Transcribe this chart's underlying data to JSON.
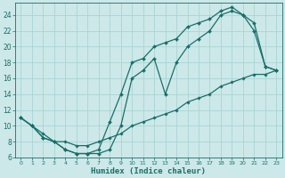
{
  "xlabel": "Humidex (Indice chaleur)",
  "bg_color": "#cce8e8",
  "line_color": "#1a6e6a",
  "grid_color": "#aad4d4",
  "xlim": [
    -0.5,
    23.5
  ],
  "ylim": [
    6,
    25.5
  ],
  "xticks": [
    0,
    1,
    2,
    3,
    4,
    5,
    6,
    7,
    8,
    9,
    10,
    11,
    12,
    13,
    14,
    15,
    16,
    17,
    18,
    19,
    20,
    21,
    22,
    23
  ],
  "yticks": [
    6,
    8,
    10,
    12,
    14,
    16,
    18,
    20,
    22,
    24
  ],
  "line1_x": [
    0,
    1,
    2,
    3,
    4,
    5,
    6,
    7,
    8,
    9,
    10,
    11,
    12,
    13,
    14,
    15,
    16,
    17,
    18,
    19,
    20,
    21,
    22,
    23
  ],
  "line1_y": [
    11,
    10,
    8.5,
    8,
    7,
    6.5,
    6.5,
    7,
    10.5,
    14,
    18,
    18.5,
    20,
    20.5,
    21,
    22.5,
    23,
    23.5,
    24.5,
    25,
    24,
    23,
    17.5,
    17
  ],
  "line2_x": [
    0,
    1,
    2,
    3,
    4,
    5,
    6,
    7,
    8,
    9,
    10,
    11,
    12,
    13,
    14,
    15,
    16,
    17,
    18,
    19,
    20,
    21,
    22,
    23
  ],
  "line2_y": [
    11,
    10,
    8.5,
    8,
    7,
    6.5,
    6.5,
    6.5,
    7,
    10,
    16,
    17,
    18.5,
    14,
    18,
    20,
    21,
    22,
    24,
    24.5,
    24,
    22,
    17.5,
    17
  ],
  "line3_x": [
    0,
    1,
    2,
    3,
    4,
    5,
    6,
    7,
    8,
    9,
    10,
    11,
    12,
    13,
    14,
    15,
    16,
    17,
    18,
    19,
    20,
    21,
    22,
    23
  ],
  "line3_y": [
    11,
    10,
    9,
    8,
    8,
    7.5,
    7.5,
    8,
    8.5,
    9,
    10,
    10.5,
    11,
    11.5,
    12,
    13,
    13.5,
    14,
    15,
    15.5,
    16,
    16.5,
    16.5,
    17
  ]
}
